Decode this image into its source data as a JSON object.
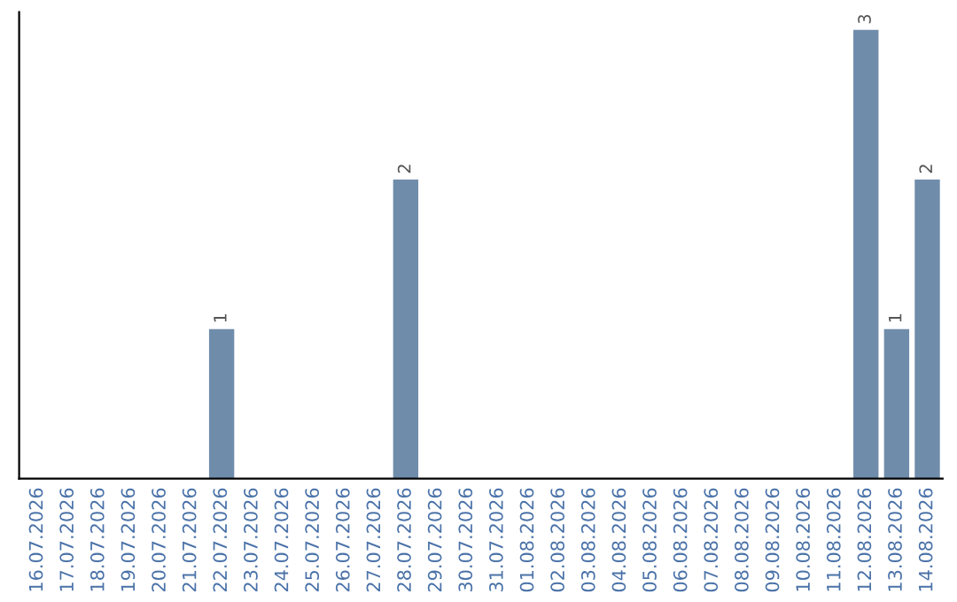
{
  "chart_data": {
    "type": "bar",
    "categories": [
      "16.07.2026",
      "17.07.2026",
      "18.07.2026",
      "19.07.2026",
      "20.07.2026",
      "21.07.2026",
      "22.07.2026",
      "23.07.2026",
      "24.07.2026",
      "25.07.2026",
      "26.07.2026",
      "27.07.2026",
      "28.07.2026",
      "29.07.2026",
      "30.07.2026",
      "31.07.2026",
      "01.08.2026",
      "02.08.2026",
      "03.08.2026",
      "04.08.2026",
      "05.08.2026",
      "06.08.2026",
      "07.08.2026",
      "08.08.2026",
      "09.08.2026",
      "10.08.2026",
      "11.08.2026",
      "12.08.2026",
      "13.08.2026",
      "14.08.2026"
    ],
    "values": [
      0,
      0,
      0,
      0,
      0,
      0,
      1,
      0,
      0,
      0,
      0,
      0,
      2,
      0,
      0,
      0,
      0,
      0,
      0,
      0,
      0,
      0,
      0,
      0,
      0,
      0,
      0,
      3,
      1,
      2
    ],
    "color": "#6f8cab",
    "value_labels": [
      null,
      null,
      null,
      null,
      null,
      null,
      "1",
      null,
      null,
      null,
      null,
      null,
      "2",
      null,
      null,
      null,
      null,
      null,
      null,
      null,
      null,
      null,
      null,
      null,
      null,
      null,
      null,
      "3",
      "1",
      "2"
    ],
    "tick_labels": "x",
    "grid": false,
    "legend": false
  }
}
